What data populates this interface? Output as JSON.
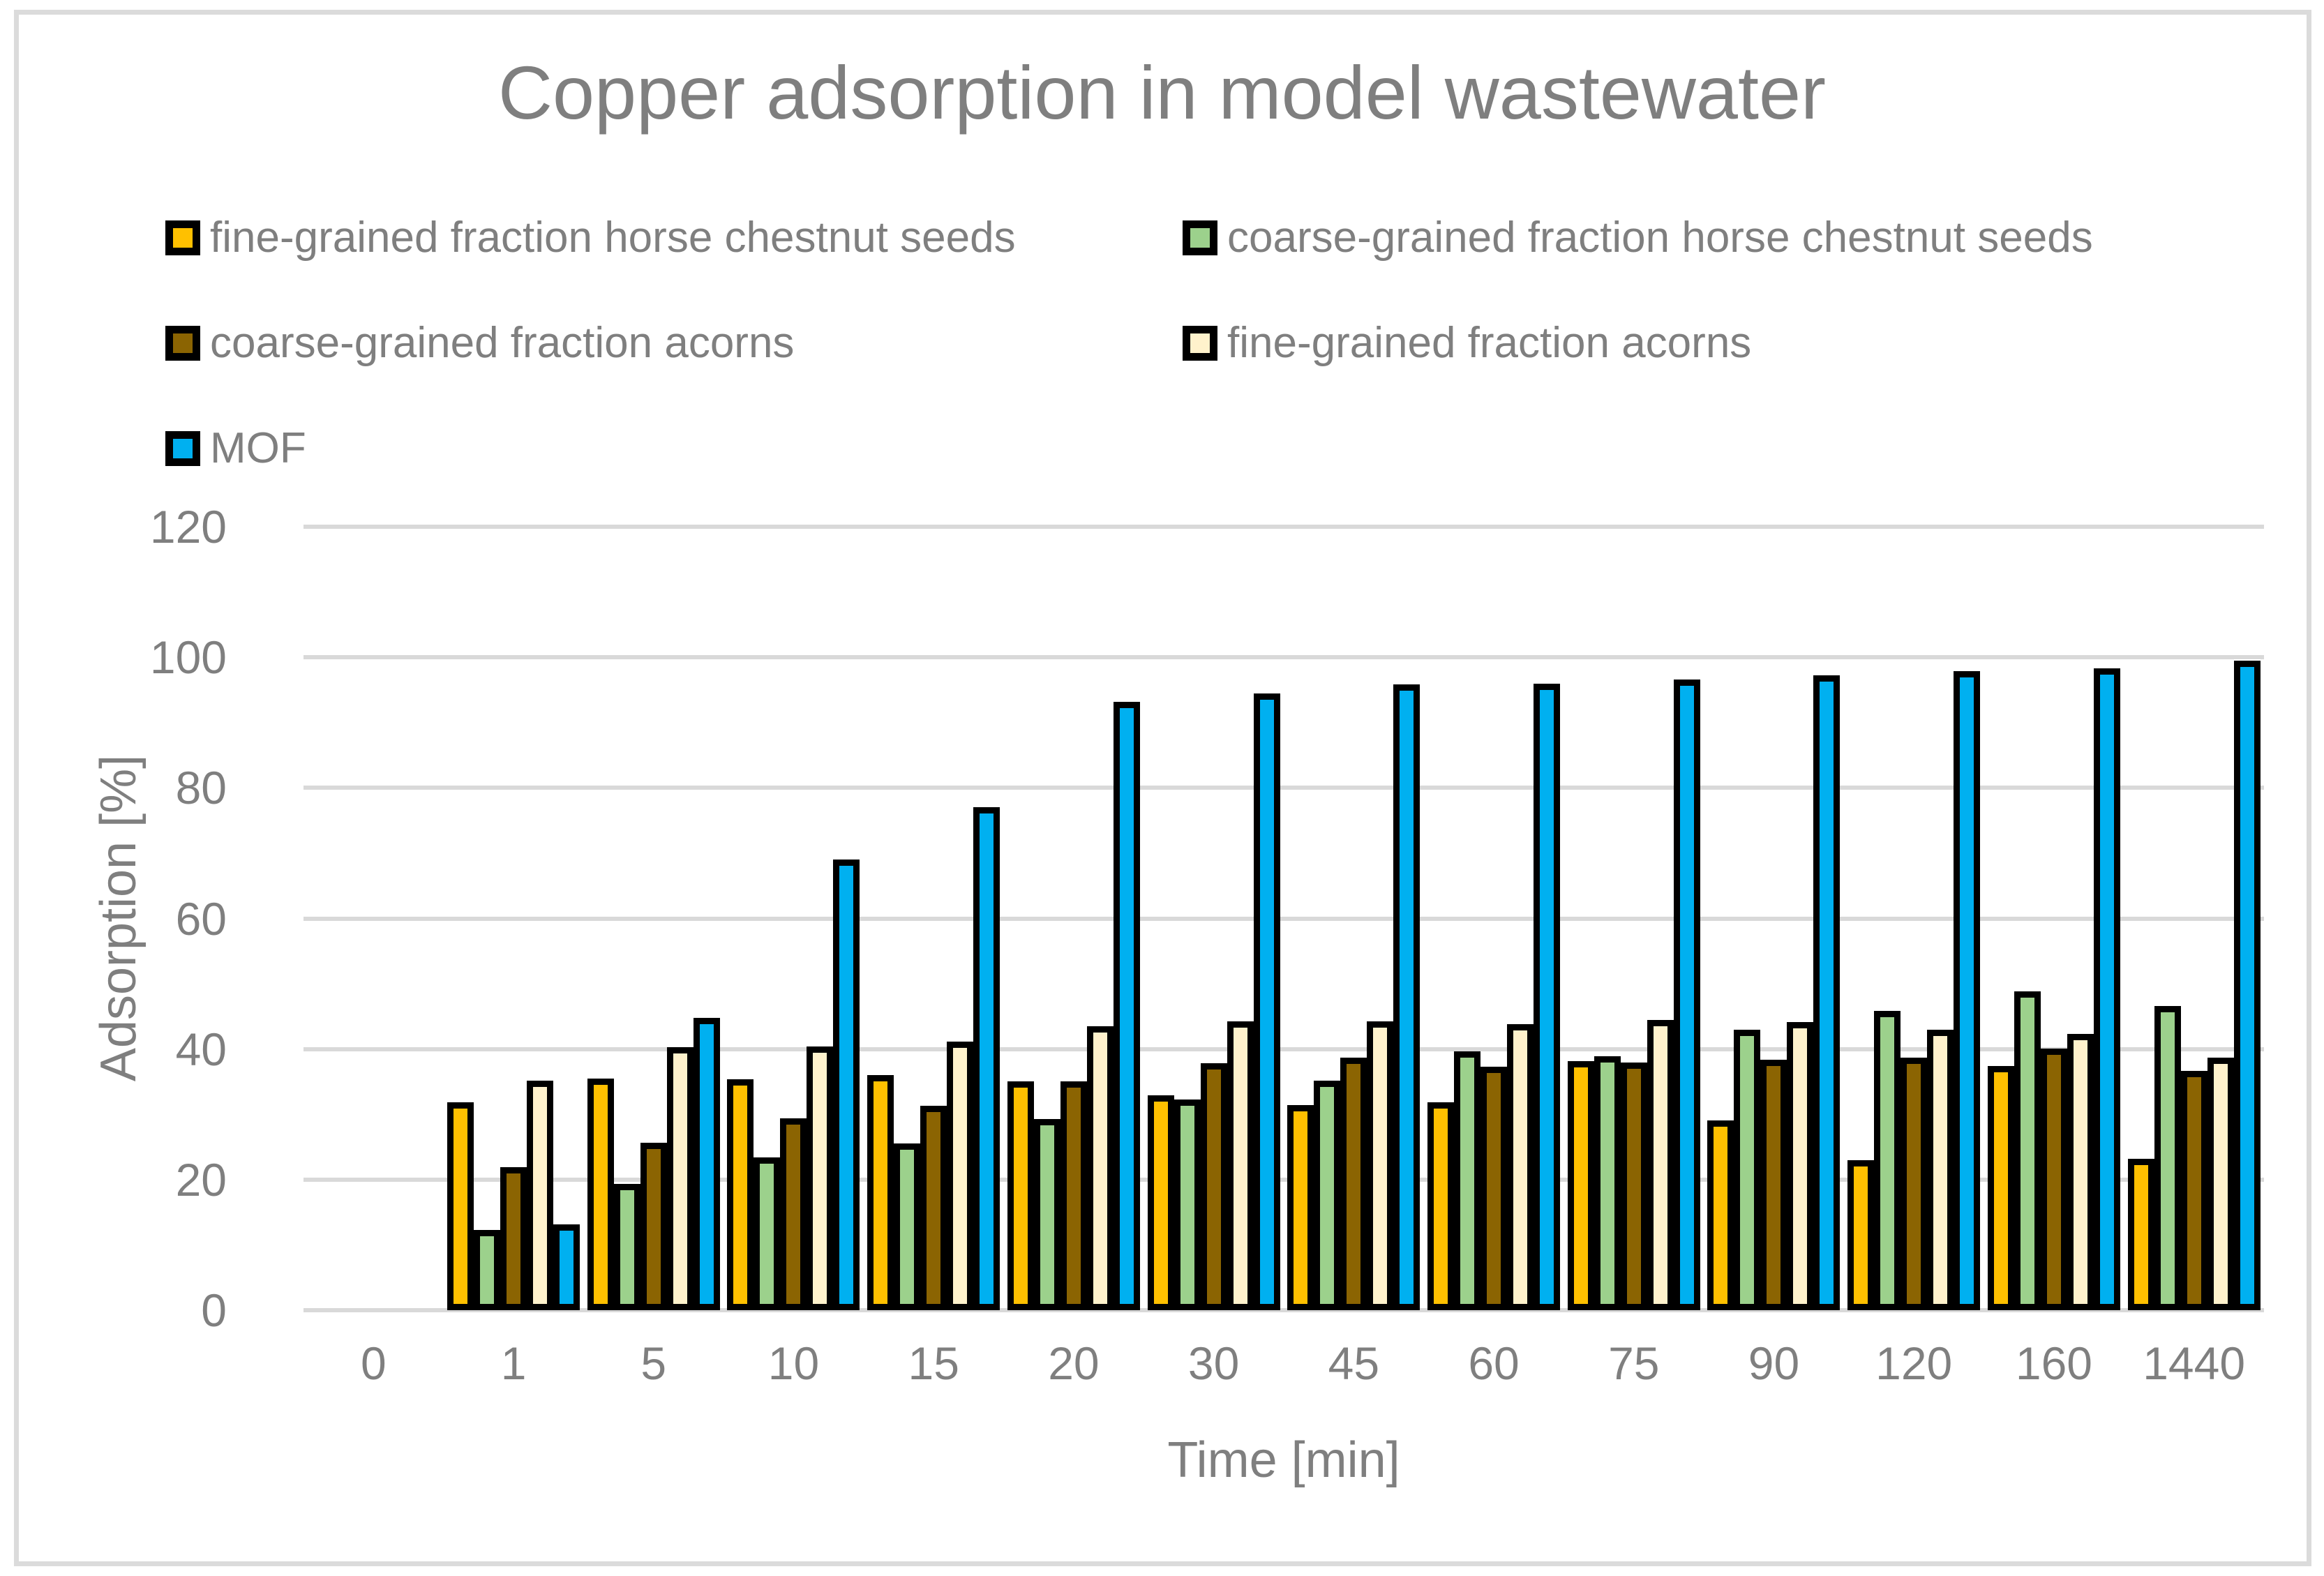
{
  "chart_data": {
    "type": "bar",
    "title": "Copper adsorption in model wastewater",
    "xlabel": "Time [min]",
    "ylabel": "Adsorption [%]",
    "ylim": [
      0,
      120
    ],
    "yticks": [
      "0",
      "20",
      "40",
      "60",
      "80",
      "100",
      "120"
    ],
    "grid": true,
    "legend_position": "top-left, two columns",
    "categories": [
      "0",
      "1",
      "5",
      "10",
      "15",
      "20",
      "30",
      "45",
      "60",
      "75",
      "90",
      "120",
      "160",
      "1440"
    ],
    "series": [
      {
        "name": "fine-grained fraction horse chestnut seeds",
        "color": "#FFC000",
        "values": [
          null,
          31.8,
          35.5,
          35.4,
          36.0,
          35.1,
          32.9,
          31.4,
          31.8,
          38.2,
          29.1,
          23.0,
          37.4,
          23.2
        ]
      },
      {
        "name": "coarse-grained fraction horse chestnut seeds",
        "color": "#9CD18C",
        "values": [
          null,
          12.3,
          19.3,
          23.4,
          25.5,
          29.3,
          32.3,
          35.2,
          39.6,
          38.9,
          43.0,
          45.8,
          48.8,
          46.6
        ]
      },
      {
        "name": "coarse-grained fraction acorns",
        "color": "#8B6402",
        "values": [
          null,
          21.9,
          25.7,
          29.4,
          31.3,
          35.1,
          37.8,
          38.7,
          37.3,
          37.9,
          38.4,
          38.7,
          40.1,
          36.7
        ]
      },
      {
        "name": "fine-grained fraction acorns",
        "color": "#FFF2CC",
        "values": [
          null,
          35.2,
          40.3,
          40.4,
          41.1,
          43.5,
          44.2,
          44.2,
          43.8,
          44.5,
          44.1,
          43.0,
          42.3,
          38.7
        ]
      },
      {
        "name": "MOF",
        "color": "#00B0F0",
        "values": [
          null,
          13.1,
          44.8,
          69.0,
          77.0,
          93.2,
          94.5,
          95.8,
          96.0,
          96.6,
          97.2,
          97.9,
          98.3,
          99.5
        ]
      }
    ],
    "colors": {
      "grid": "#D9D9D9",
      "text": "#7F7F7F",
      "bar_outline": "#000000"
    }
  }
}
